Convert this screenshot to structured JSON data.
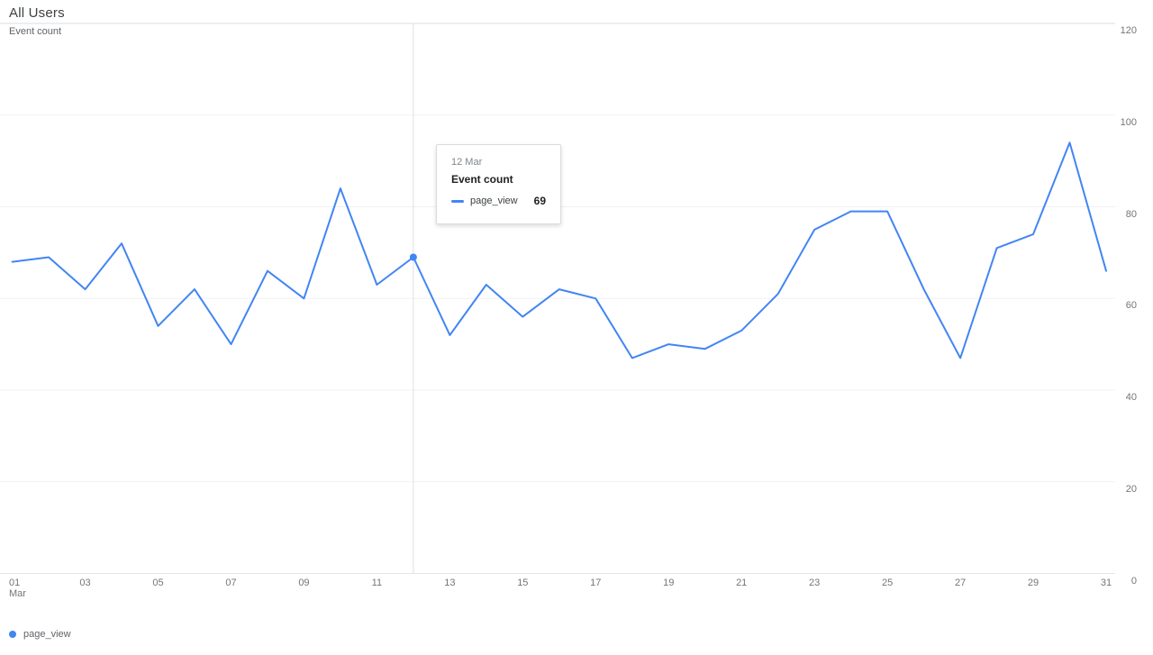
{
  "header": {
    "title": "All Users",
    "metric_label": "Event count"
  },
  "tooltip": {
    "date": "12 Mar",
    "metric": "Event count",
    "series": "page_view",
    "value": "69"
  },
  "legend": {
    "series": "page_view"
  },
  "colors": {
    "accent": "#4285f4",
    "grid_top": "#dadce0",
    "grid": "#f1f1f1",
    "grid_bottom": "#e6e6e6",
    "hover_line": "#e0e0e0",
    "axis_text": "#757575"
  },
  "chart_data": {
    "type": "line",
    "title": "Event count",
    "xlabel": "",
    "ylabel": "Event count",
    "x_month": "Mar",
    "x_days": [
      1,
      2,
      3,
      4,
      5,
      6,
      7,
      8,
      9,
      10,
      11,
      12,
      13,
      14,
      15,
      16,
      17,
      18,
      19,
      20,
      21,
      22,
      23,
      24,
      25,
      26,
      27,
      28,
      29,
      30,
      31
    ],
    "x_tick_days": [
      1,
      3,
      5,
      7,
      9,
      11,
      13,
      15,
      17,
      19,
      21,
      23,
      25,
      27,
      29,
      31
    ],
    "x_tick_labels": [
      "01",
      "03",
      "05",
      "07",
      "09",
      "11",
      "13",
      "15",
      "17",
      "19",
      "21",
      "23",
      "25",
      "27",
      "29",
      "31"
    ],
    "y_ticks": [
      0,
      20,
      40,
      60,
      80,
      100,
      120
    ],
    "ylim": [
      0,
      120
    ],
    "grid": true,
    "legend_position": "bottom-left",
    "series": [
      {
        "name": "page_view",
        "color": "#4285f4",
        "values": [
          68,
          69,
          62,
          72,
          54,
          62,
          50,
          66,
          60,
          84,
          63,
          69,
          52,
          63,
          56,
          62,
          60,
          47,
          50,
          49,
          53,
          61,
          75,
          79,
          79,
          62,
          47,
          71,
          74,
          94,
          66
        ]
      }
    ],
    "highlight": {
      "day": 12,
      "label": "12 Mar",
      "series": "page_view",
      "value": 69
    }
  }
}
